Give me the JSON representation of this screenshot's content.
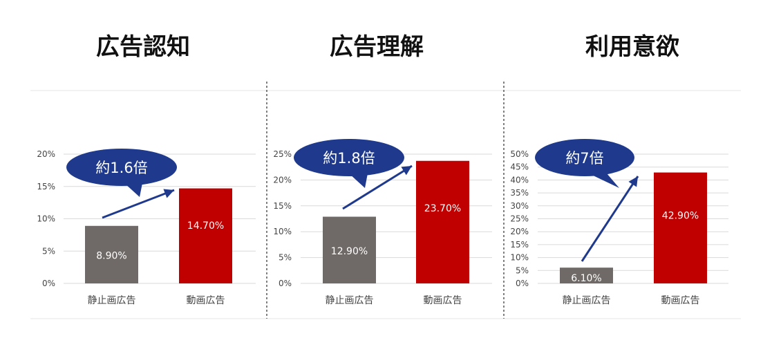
{
  "colors": {
    "static": "#6f6a67",
    "video": "#c00000",
    "callout": "#1f3a8c",
    "arrow": "#1f3a8c",
    "grid": "#d9d9d9"
  },
  "chart_data": [
    {
      "type": "bar",
      "title": "広告認知",
      "categories": [
        "静止画広告",
        "動画広告"
      ],
      "values": [
        8.9,
        14.7
      ],
      "value_labels": [
        "8.90%",
        "14.70%"
      ],
      "ylim": [
        0,
        20
      ],
      "yticks": [
        "0%",
        "5%",
        "10%",
        "15%",
        "20%"
      ],
      "callout": "約1.6倍",
      "grid": true
    },
    {
      "type": "bar",
      "title": "広告理解",
      "categories": [
        "静止画広告",
        "動画広告"
      ],
      "values": [
        12.9,
        23.7
      ],
      "value_labels": [
        "12.90%",
        "23.70%"
      ],
      "ylim": [
        0,
        25
      ],
      "yticks": [
        "0%",
        "5%",
        "10%",
        "15%",
        "20%",
        "25%"
      ],
      "callout": "約1.8倍",
      "grid": true
    },
    {
      "type": "bar",
      "title": "利用意欲",
      "categories": [
        "静止画広告",
        "動画広告"
      ],
      "values": [
        6.1,
        42.9
      ],
      "value_labels": [
        "6.10%",
        "42.90%"
      ],
      "ylim": [
        0,
        50
      ],
      "yticks": [
        "0%",
        "5%",
        "10%",
        "15%",
        "20%",
        "25%",
        "30%",
        "35%",
        "40%",
        "45%",
        "50%"
      ],
      "callout": "約7倍",
      "grid": true
    }
  ]
}
